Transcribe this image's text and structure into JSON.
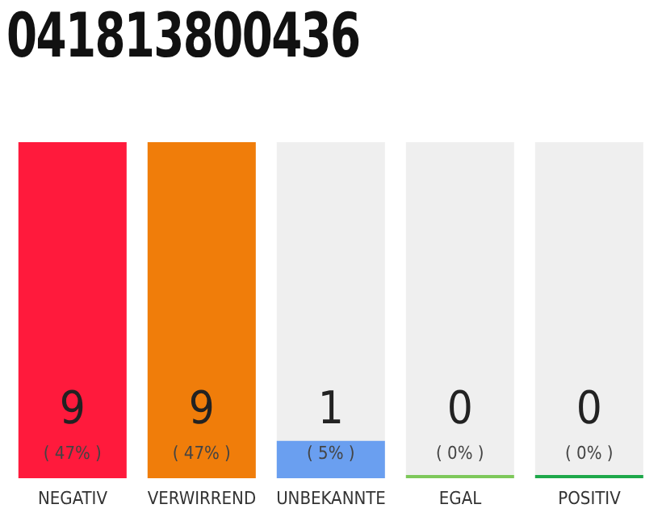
{
  "chart_data": {
    "type": "bar",
    "title": "041813800436",
    "categories": [
      "NEGATIV",
      "VERWIRREND",
      "UNBEKANNTE",
      "EGAL",
      "POSITIV"
    ],
    "values": [
      9,
      9,
      1,
      0,
      0
    ],
    "colors": [
      "#ff1a3c",
      "#f07d0a",
      "#6a9ff0",
      "#7dc85a",
      "#1ea84a"
    ],
    "value_labels": [
      "9\n( 47% )",
      "9\n( 47% )",
      "1\n( 5% )",
      "0\n( 0% )",
      "0\n( 0% )"
    ],
    "grid": false,
    "legend": false
  }
}
